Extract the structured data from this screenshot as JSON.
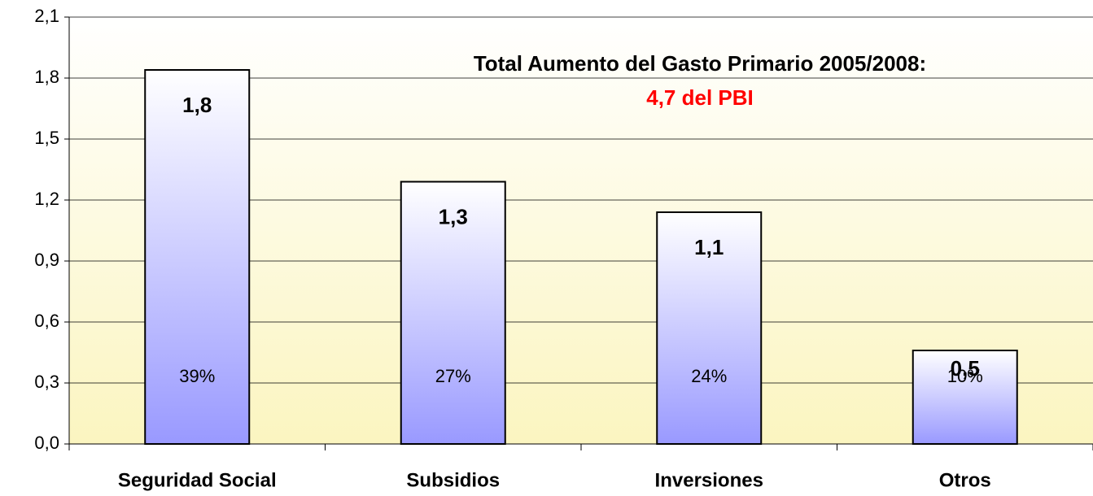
{
  "chart_data": {
    "type": "bar",
    "annotation": "Total Aumento del Gasto Primario 2005/2008:",
    "annotation_total": "4,7 del PBI",
    "annotation_total_color": "#ff0000",
    "categories": [
      "Seguridad Social",
      "Subsidios",
      "Inversiones",
      "Otros"
    ],
    "values": [
      1.84,
      1.29,
      1.14,
      0.46
    ],
    "value_labels": [
      "1,8",
      "1,3",
      "1,1",
      "0,5"
    ],
    "percent_labels": [
      "39%",
      "27%",
      "24%",
      "10%"
    ],
    "color": "#9999ff",
    "ylim": [
      0,
      2.1
    ],
    "yticks": [
      {
        "value": 0,
        "label": "0,0"
      },
      {
        "value": 0.3,
        "label": "0,3"
      },
      {
        "value": 0.6,
        "label": "0,6"
      },
      {
        "value": 0.9,
        "label": "0,9"
      },
      {
        "value": 1.2,
        "label": "1,2"
      },
      {
        "value": 1.5,
        "label": "1,5"
      },
      {
        "value": 1.8,
        "label": "1,8"
      },
      {
        "value": 2.1,
        "label": "2,1"
      }
    ],
    "grid": true
  }
}
